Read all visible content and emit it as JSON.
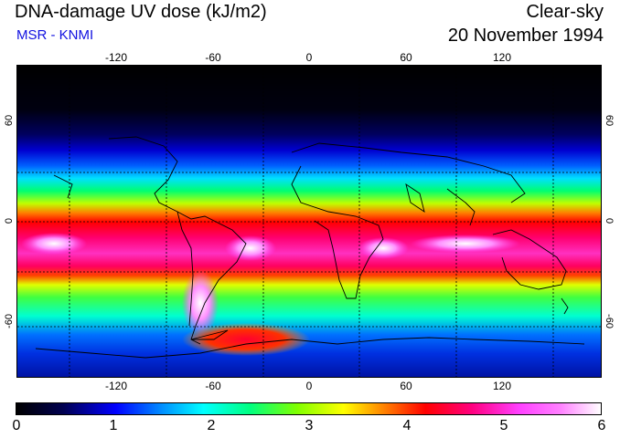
{
  "header": {
    "title": "DNA-damage UV dose (kJ/m2)",
    "subtitle": "MSR - KNMI",
    "condition": "Clear-sky",
    "date": "20 November 1994"
  },
  "map": {
    "lon_ticks": [
      "-120",
      "-60",
      "0",
      "60",
      "120"
    ],
    "lat_ticks_left": [
      "60",
      "0",
      "-60"
    ],
    "lat_ticks_right": [
      "60",
      "0",
      "-60"
    ],
    "colors": {
      "frame": "#000000",
      "coast": "#000000",
      "grid": "#000000"
    }
  },
  "colorbar": {
    "ticks": [
      "0",
      "1",
      "2",
      "3",
      "4",
      "5",
      "6"
    ],
    "range": [
      0,
      6
    ]
  }
}
